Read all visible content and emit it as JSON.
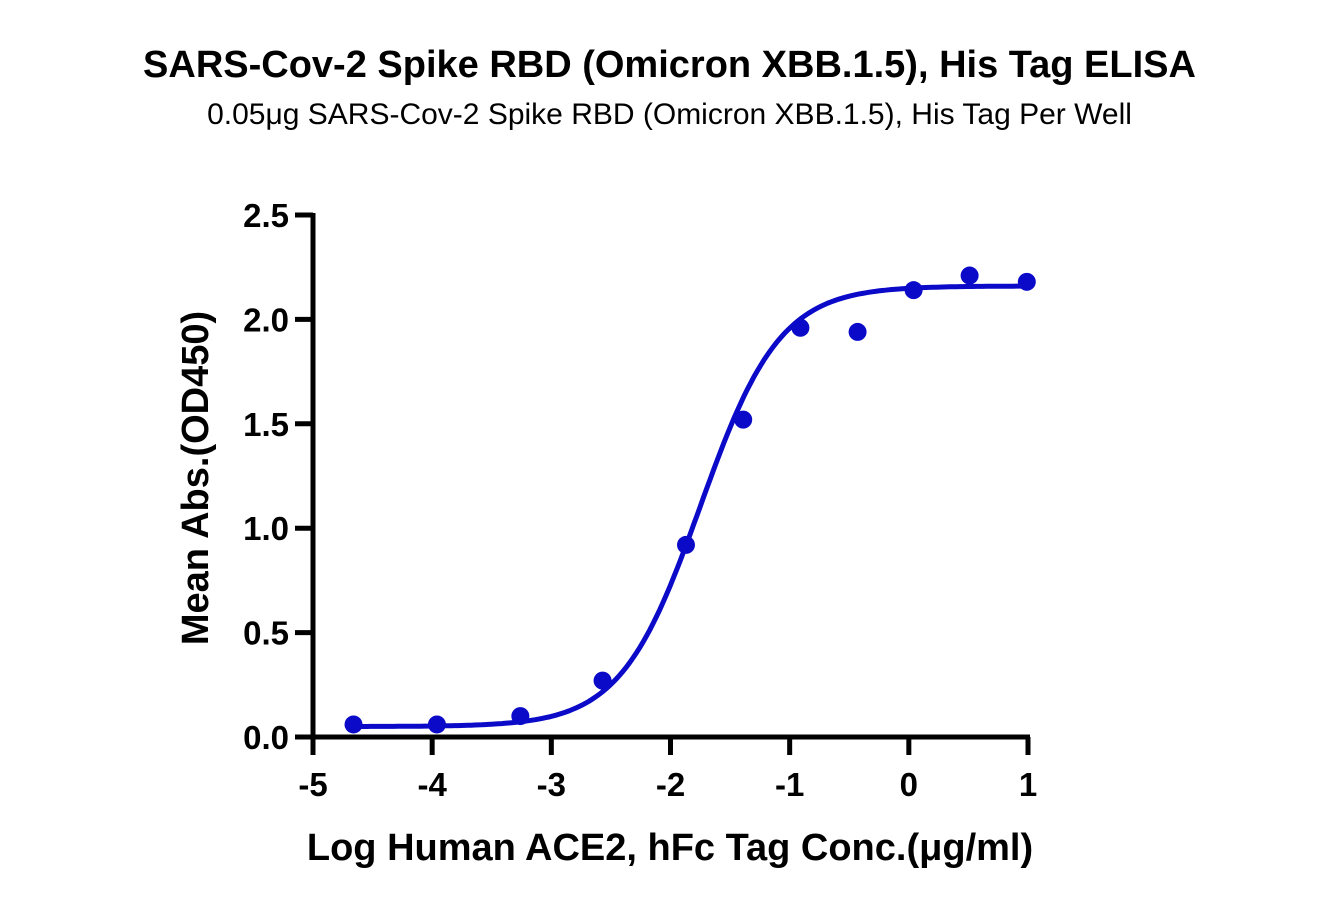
{
  "header": {
    "title": "SARS-Cov-2 Spike RBD (Omicron XBB.1.5), His Tag ELISA",
    "subtitle": "0.05μg SARS-Cov-2 Spike RBD (Omicron XBB.1.5), His Tag Per Well"
  },
  "colors": {
    "series": "#0a0ac8",
    "axis": "#000000"
  },
  "chart_data": {
    "type": "scatter",
    "title": "SARS-Cov-2 Spike RBD (Omicron XBB.1.5), His Tag ELISA",
    "subtitle": "0.05μg SARS-Cov-2 Spike RBD (Omicron XBB.1.5), His Tag Per Well",
    "xlabel": "Log Human ACE2, hFc Tag Conc.(μg/ml)",
    "ylabel": "Mean Abs.(OD450)",
    "xlim": [
      -5,
      1
    ],
    "ylim": [
      0,
      2.5
    ],
    "xticks": [
      "-5",
      "-4",
      "-3",
      "-2",
      "-1",
      "0",
      "1"
    ],
    "yticks": [
      "0.0",
      "0.5",
      "1.0",
      "1.5",
      "2.0",
      "2.5"
    ],
    "grid": false,
    "legend": null,
    "series": [
      {
        "name": "Mean Abs.(OD450)",
        "x": [
          -4.66,
          -3.96,
          -3.26,
          -2.57,
          -1.87,
          -1.39,
          -0.91,
          -0.43,
          0.04,
          0.51,
          0.99
        ],
        "y": [
          0.06,
          0.06,
          0.1,
          0.27,
          0.92,
          1.52,
          1.96,
          1.94,
          2.14,
          2.21,
          2.18
        ],
        "marker": "circle"
      }
    ],
    "fit": {
      "model": "4PL",
      "bottom": 0.05,
      "top": 2.16,
      "log_ec50": -1.75,
      "hill": 1.3
    }
  }
}
